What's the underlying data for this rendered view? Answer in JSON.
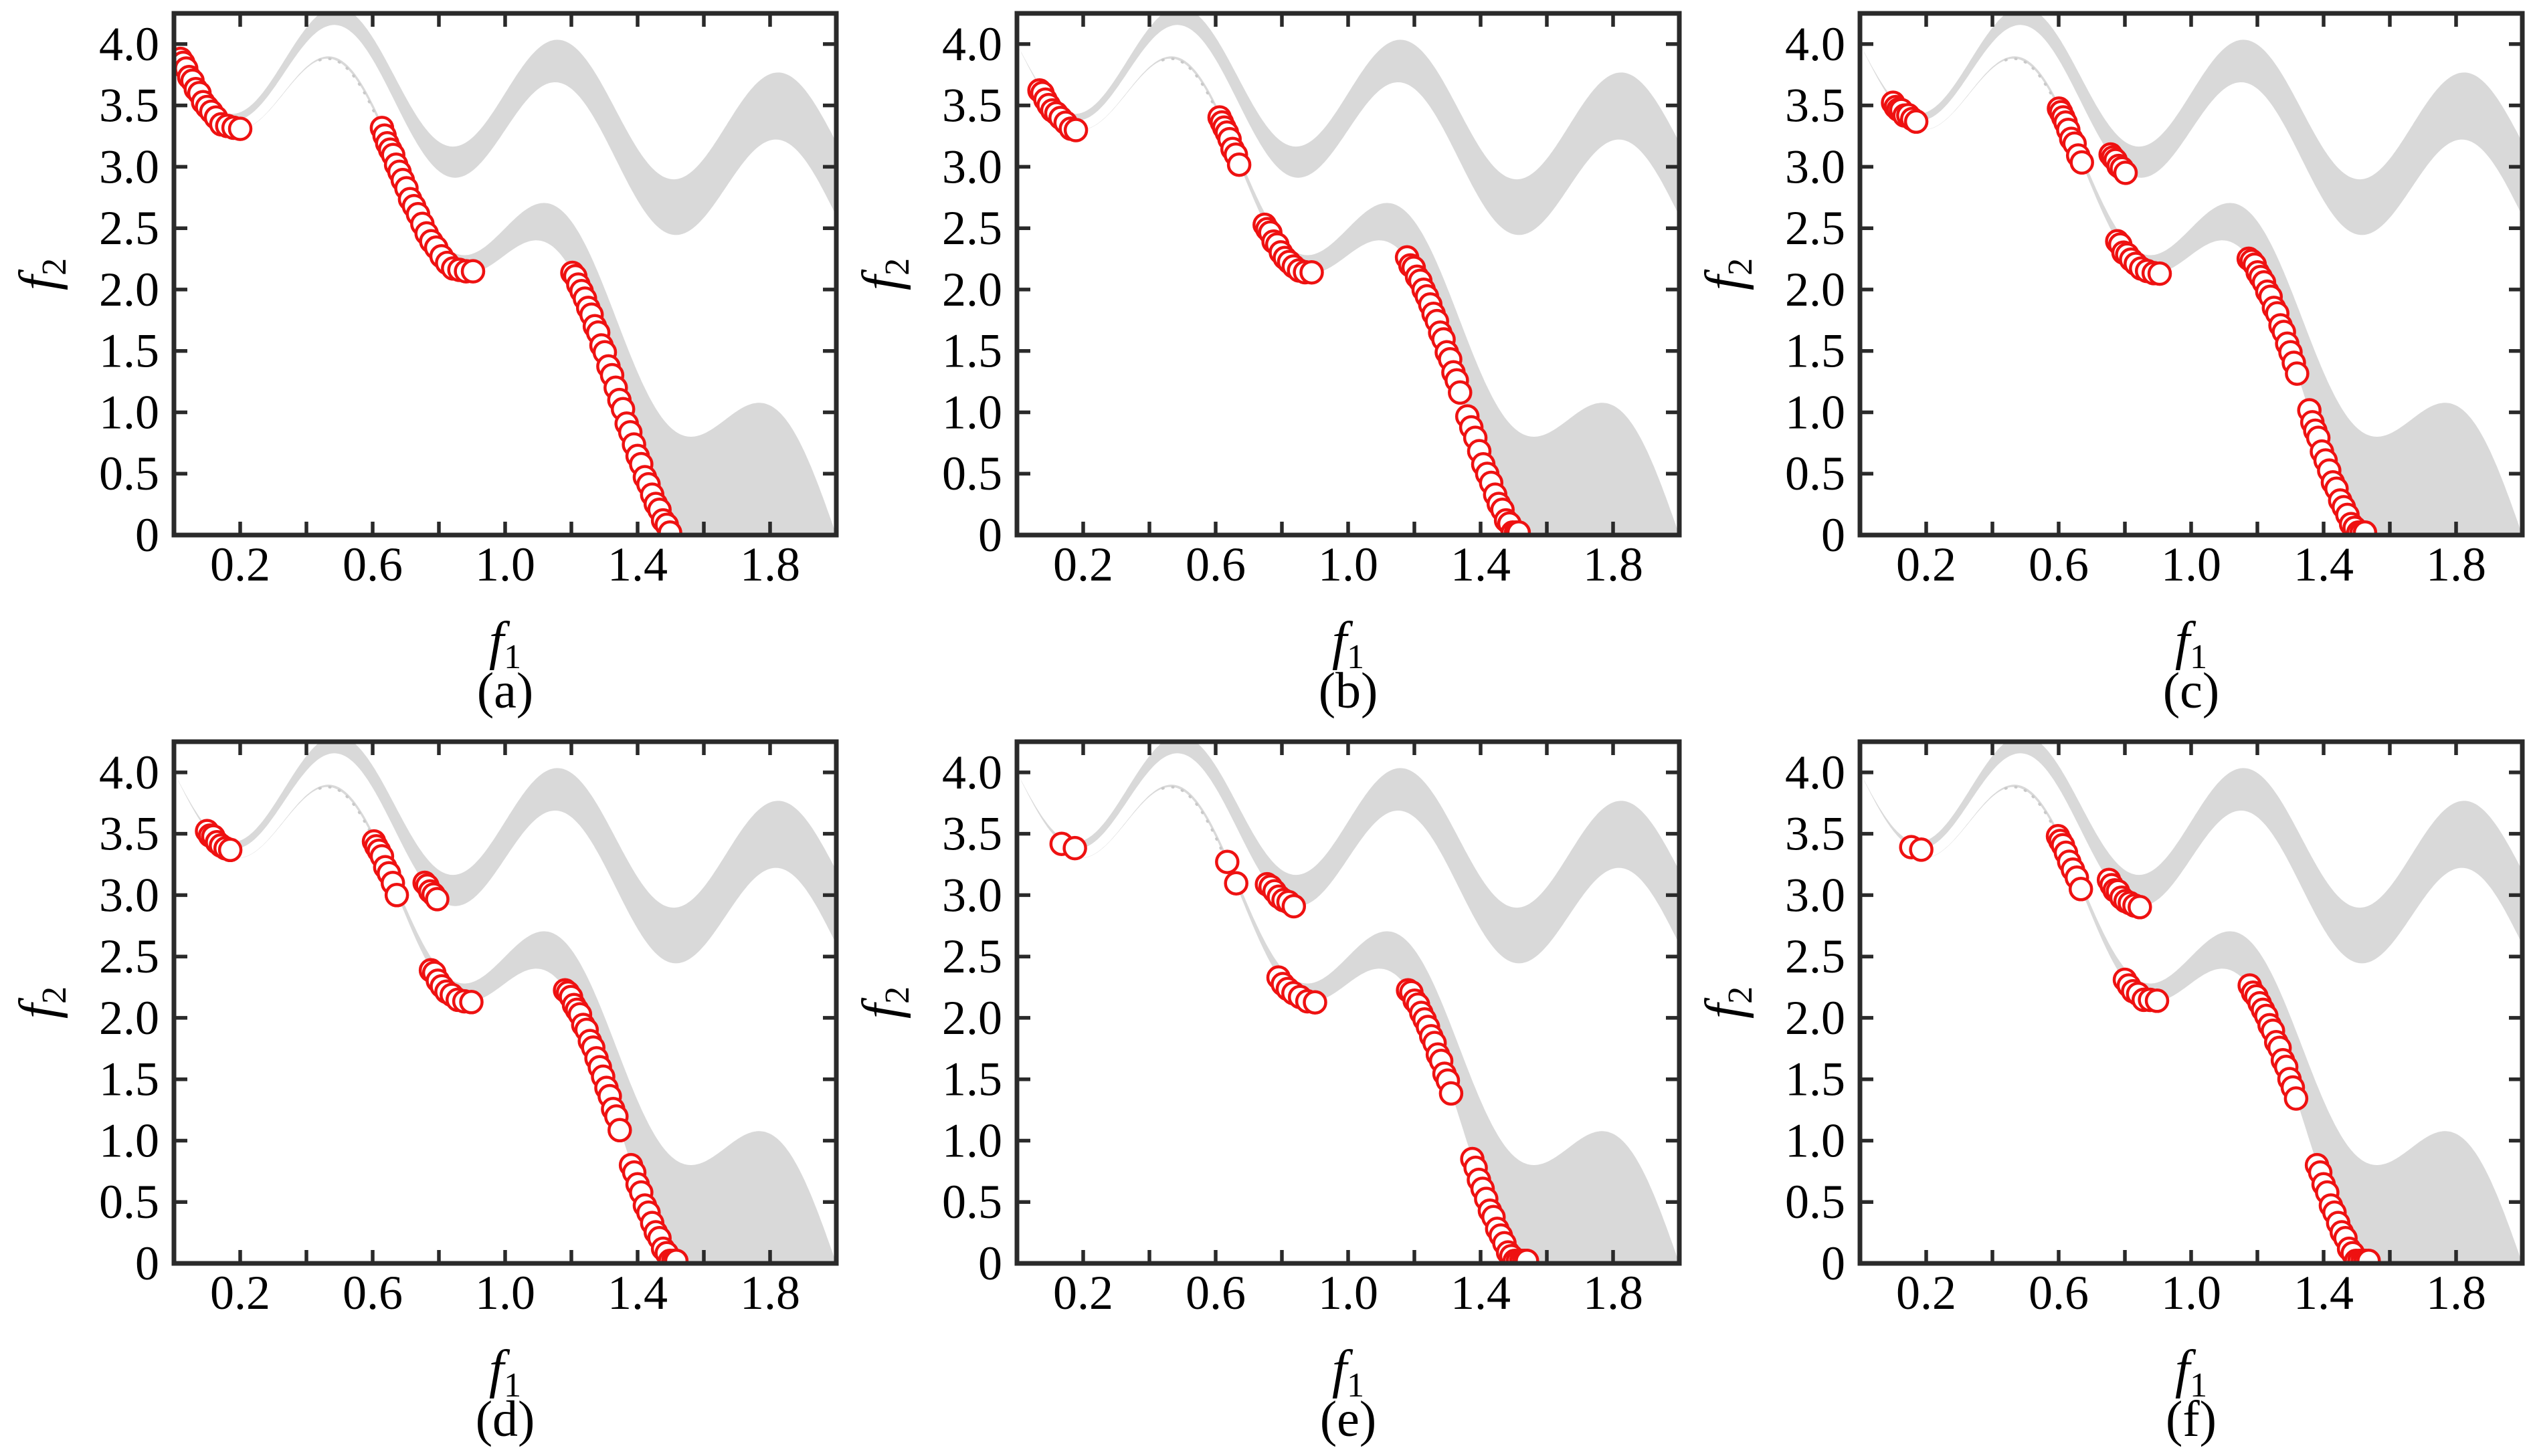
{
  "figure": {
    "marker_color": "#ee1111",
    "marker_fill": "#ffffff",
    "region_fill": "#d9d9d9",
    "dotted_color": "#c9c9c9",
    "axis_color": "#2a2a2a"
  },
  "chart_data": {
    "type": "scatter",
    "title": "",
    "xlabel_base": "f",
    "xlabel_sub": "1",
    "ylabel_base": "f",
    "ylabel_sub": "2",
    "xlim": [
      0,
      2.0
    ],
    "ylim": [
      0,
      4.25
    ],
    "grid": false,
    "legend": "none",
    "xticks_minor": [
      0.2,
      0.4,
      0.6,
      0.8,
      1.0,
      1.2,
      1.4,
      1.6,
      1.8,
      2.0
    ],
    "xticks_labeled": [
      0.2,
      0.6,
      1.0,
      1.4,
      1.8
    ],
    "xtick_labels": [
      "0.2",
      "0.6",
      "1.0",
      "1.4",
      "1.8"
    ],
    "yticks_labeled": [
      0,
      0.5,
      1.0,
      1.5,
      2.0,
      2.5,
      3.0,
      3.5,
      4.0
    ],
    "ytick_labels": [
      "0",
      "0.5",
      "1.0",
      "1.5",
      "2.0",
      "2.5",
      "3.0",
      "3.5",
      "4.0"
    ],
    "feasible_region": {
      "comment_free": "bands of MW13-type objective space; y = c0 + c1*x + c2*x^2 + exp_k*e^x + sin_k*sin(3*pi*x)",
      "sin_freq_pi_mult": 3,
      "curves": {
        "A": {
          "c0": 5,
          "c1": 0,
          "c2": 0,
          "exp_k": -1,
          "sin_k": -0.5
        },
        "C": {
          "c0": 4,
          "c1": -1,
          "c2": -0.5,
          "exp_k": 0,
          "sin_k": -0.5
        },
        "D": {
          "c0": 4,
          "c1": -0.7,
          "c2": 0,
          "exp_k": 0,
          "sin_k": -0.5
        },
        "B": {
          "c0": 4,
          "c1": -0.4,
          "c2": 0,
          "exp_k": 0,
          "sin_k": -0.5
        }
      },
      "bands": [
        [
          "A",
          "C"
        ],
        [
          "D",
          "B"
        ]
      ],
      "dotted_segment": {
        "curve": "A",
        "x_from": 0.44,
        "x_to": 0.648
      }
    },
    "panels": [
      {
        "label": "(a)",
        "segments": [
          {
            "curve": "A",
            "x": [
              0.02,
              0.028,
              0.037,
              0.046,
              0.056,
              0.066,
              0.077,
              0.088,
              0.1,
              0.113,
              0.127,
              0.143,
              0.161,
              0.18,
              0.2
            ]
          },
          {
            "curve": "A",
            "x": [
              0.628,
              0.636,
              0.644,
              0.653,
              0.662,
              0.671,
              0.681,
              0.691,
              0.702,
              0.713,
              0.725,
              0.737,
              0.75,
              0.763,
              0.777,
              0.792,
              0.808,
              0.825,
              0.843,
              0.862,
              0.882,
              0.903
            ]
          },
          {
            "curve": "A",
            "x": [
              1.203,
              1.212,
              1.221,
              1.231,
              1.241,
              1.251,
              1.261,
              1.271,
              1.281,
              1.291,
              1.301,
              1.312,
              1.323,
              1.334,
              1.345,
              1.356,
              1.367,
              1.378,
              1.389,
              1.4,
              1.411,
              1.422,
              1.433,
              1.444,
              1.455,
              1.466,
              1.477,
              1.488,
              1.498
            ]
          }
        ]
      },
      {
        "label": "(b)",
        "segments": [
          {
            "curve": "A",
            "x": [
              0.068,
              0.077,
              0.086,
              0.096,
              0.107,
              0.119,
              0.132,
              0.147,
              0.163,
              0.178
            ]
          },
          {
            "curve": "A",
            "x": [
              0.612,
              0.619,
              0.626,
              0.634,
              0.642,
              0.651,
              0.661,
              0.671
            ]
          },
          {
            "curve": "A",
            "x": [
              0.748,
              0.756,
              0.765,
              0.775,
              0.786,
              0.797,
              0.809,
              0.822,
              0.836,
              0.852,
              0.87,
              0.89
            ]
          },
          {
            "curve": "A",
            "x": [
              1.178,
              1.188,
              1.198,
              1.208,
              1.218,
              1.228,
              1.238,
              1.248,
              1.258,
              1.268,
              1.278,
              1.288,
              1.298,
              1.308,
              1.318,
              1.328,
              1.338,
              1.36,
              1.372,
              1.384,
              1.396,
              1.408,
              1.42,
              1.432,
              1.444,
              1.455,
              1.466,
              1.477,
              1.487,
              1.497,
              1.507,
              1.515
            ]
          }
        ]
      },
      {
        "label": "(c)",
        "segments": [
          {
            "curve": "D",
            "x": [
              0.1,
              0.108,
              0.116,
              0.125,
              0.135,
              0.146,
              0.158,
              0.17
            ]
          },
          {
            "curve": "A",
            "x": [
              0.601,
              0.607,
              0.614,
              0.621,
              0.629,
              0.638,
              0.648,
              0.659,
              0.67
            ]
          },
          {
            "curve": "D",
            "x": [
              0.757,
              0.764,
              0.772,
              0.781,
              0.791,
              0.802
            ]
          },
          {
            "curve": "A",
            "x": [
              0.777,
              0.786,
              0.796,
              0.807,
              0.819,
              0.833,
              0.849,
              0.867,
              0.887,
              0.905
            ]
          },
          {
            "curve": "A",
            "x": [
              1.174,
              1.183,
              1.192,
              1.201,
              1.21,
              1.22,
              1.23,
              1.24,
              1.25,
              1.26,
              1.27,
              1.28,
              1.29,
              1.3,
              1.31,
              1.32,
              1.357,
              1.366,
              1.375,
              1.384,
              1.395,
              1.406,
              1.417,
              1.428,
              1.439,
              1.45,
              1.461,
              1.472,
              1.483,
              1.494,
              1.505,
              1.515,
              1.525
            ]
          }
        ]
      },
      {
        "label": "(d)",
        "segments": [
          {
            "curve": "D",
            "x": [
              0.1,
              0.109,
              0.119,
              0.13,
              0.142,
              0.156,
              0.17
            ]
          },
          {
            "curve": "A",
            "x": [
              0.604,
              0.611,
              0.619,
              0.628,
              0.638,
              0.649,
              0.661,
              0.673
            ]
          },
          {
            "curve": "D",
            "x": [
              0.757,
              0.765,
              0.774,
              0.784,
              0.795
            ]
          },
          {
            "curve": "A",
            "x": [
              0.776,
              0.786,
              0.797,
              0.809,
              0.823,
              0.839,
              0.857,
              0.877,
              0.898
            ]
          },
          {
            "curve": "A",
            "x": [
              1.181,
              1.19,
              1.199,
              1.208,
              1.217,
              1.226,
              1.236,
              1.246,
              1.256,
              1.266,
              1.276,
              1.286,
              1.296,
              1.306,
              1.316,
              1.326,
              1.336,
              1.346,
              1.38,
              1.39,
              1.4,
              1.411,
              1.422,
              1.433,
              1.444,
              1.455,
              1.466,
              1.477,
              1.488,
              1.498,
              1.508,
              1.517
            ]
          }
        ]
      },
      {
        "label": "(e)",
        "segments": [
          {
            "curve": "D",
            "x": [
              0.135,
              0.175
            ]
          },
          {
            "curve": "A",
            "x": [
              0.635
            ]
          },
          {
            "curve": "A",
            "x": [
              0.662
            ]
          },
          {
            "curve": "D",
            "x": [
              0.755,
              0.766,
              0.778,
              0.791,
              0.805,
              0.82,
              0.836
            ]
          },
          {
            "curve": "A",
            "x": [
              0.79,
              0.803,
              0.818,
              0.835,
              0.855,
              0.877,
              0.9
            ]
          },
          {
            "curve": "A",
            "x": [
              1.181,
              1.191,
              1.201,
              1.211,
              1.221,
              1.231,
              1.241,
              1.251,
              1.261,
              1.271,
              1.281,
              1.291,
              1.301,
              1.311,
              1.375,
              1.385,
              1.395,
              1.406,
              1.417,
              1.428,
              1.439,
              1.45,
              1.461,
              1.472,
              1.483,
              1.493,
              1.503,
              1.513,
              1.523,
              1.532,
              1.54
            ]
          }
        ]
      },
      {
        "label": "(f)",
        "segments": [
          {
            "curve": "D",
            "x": [
              0.155,
              0.185
            ]
          },
          {
            "curve": "A",
            "x": [
              0.598,
              0.605,
              0.613,
              0.622,
              0.632,
              0.643,
              0.655,
              0.667
            ]
          },
          {
            "curve": "D",
            "x": [
              0.752,
              0.76,
              0.769,
              0.779,
              0.79,
              0.802,
              0.815,
              0.829,
              0.845
            ]
          },
          {
            "curve": "A",
            "x": [
              0.8,
              0.812,
              0.825,
              0.84,
              0.857,
              0.876,
              0.897
            ]
          },
          {
            "curve": "A",
            "x": [
              1.177,
              1.187,
              1.197,
              1.207,
              1.217,
              1.227,
              1.237,
              1.247,
              1.257,
              1.267,
              1.277,
              1.287,
              1.297,
              1.307,
              1.317,
              1.38,
              1.39,
              1.4,
              1.411,
              1.422,
              1.433,
              1.444,
              1.455,
              1.466,
              1.477,
              1.488,
              1.498,
              1.508,
              1.518,
              1.527,
              1.536
            ]
          }
        ]
      }
    ]
  }
}
